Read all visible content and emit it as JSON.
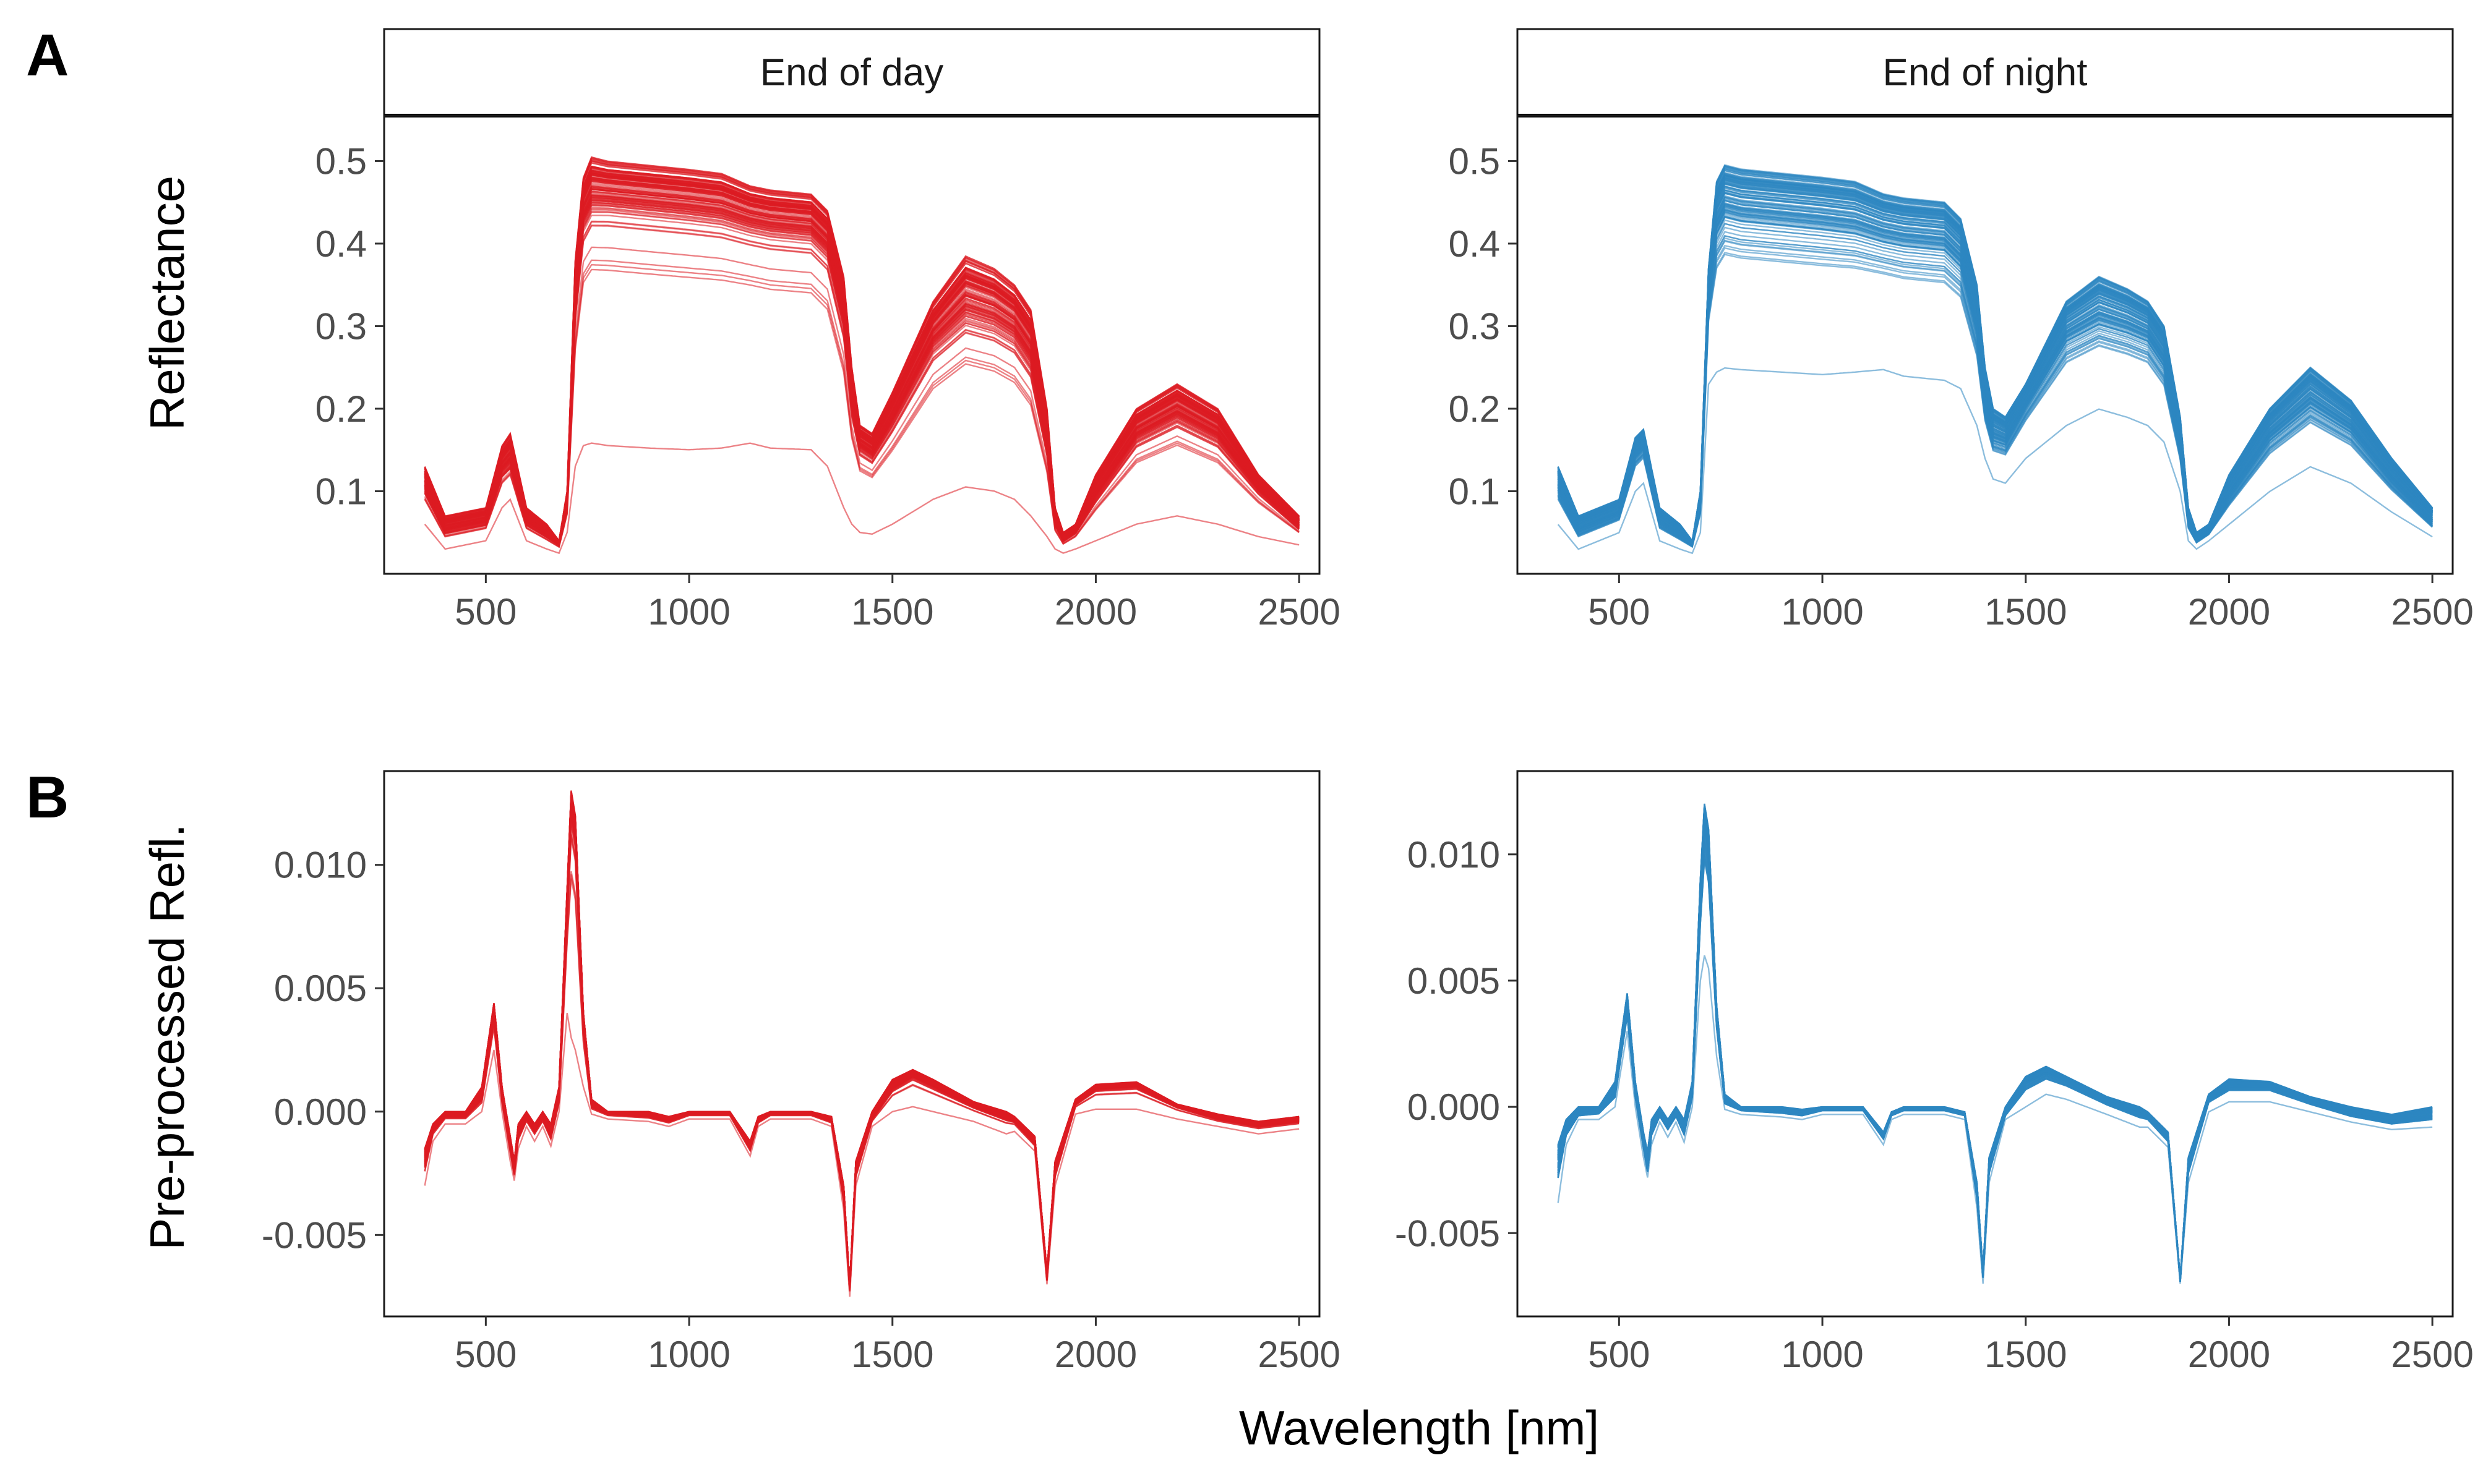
{
  "figure": {
    "panel_a_tag": "A",
    "panel_b_tag": "B",
    "x_title": "Wavelength [nm]",
    "y_title_a": "Reflectance",
    "y_title_b": "Pre-processed Refl."
  },
  "colors": {
    "end_of_day": "#dd1c22",
    "end_of_night": "#2e86c1"
  },
  "chart_data": [
    {
      "type": "line",
      "panel": "A",
      "facet": "End of day",
      "xlabel": "Wavelength [nm]",
      "ylabel": "Reflectance",
      "xlim": [
        250,
        2550
      ],
      "ylim": [
        0.0,
        0.555
      ],
      "x_ticks": [
        500,
        1000,
        1500,
        2000,
        2500
      ],
      "y_ticks": [
        0.1,
        0.2,
        0.3,
        0.4,
        0.5
      ],
      "x_tick_labels": [
        "500",
        "1000",
        "1500",
        "2000",
        "2500"
      ],
      "y_tick_labels": [
        "0.1",
        "0.2",
        "0.3",
        "0.4",
        "0.5"
      ],
      "line_count": 120,
      "nir_plateau_range": [
        0.15,
        0.5
      ],
      "x": [
        350,
        400,
        500,
        540,
        560,
        600,
        650,
        680,
        700,
        720,
        740,
        760,
        800,
        900,
        1000,
        1080,
        1150,
        1200,
        1300,
        1340,
        1380,
        1400,
        1420,
        1450,
        1500,
        1600,
        1680,
        1750,
        1800,
        1840,
        1880,
        1900,
        1920,
        1950,
        2000,
        2100,
        2200,
        2300,
        2400,
        2500
      ],
      "series": [
        {
          "stat": "max",
          "values": [
            0.13,
            0.07,
            0.08,
            0.155,
            0.17,
            0.08,
            0.06,
            0.04,
            0.1,
            0.38,
            0.48,
            0.505,
            0.5,
            0.495,
            0.49,
            0.485,
            0.47,
            0.465,
            0.46,
            0.44,
            0.36,
            0.25,
            0.18,
            0.17,
            0.22,
            0.33,
            0.385,
            0.37,
            0.35,
            0.32,
            0.2,
            0.08,
            0.05,
            0.06,
            0.12,
            0.2,
            0.23,
            0.2,
            0.12,
            0.07
          ]
        },
        {
          "stat": "median",
          "values": [
            0.1,
            0.05,
            0.06,
            0.12,
            0.13,
            0.06,
            0.045,
            0.035,
            0.08,
            0.32,
            0.42,
            0.44,
            0.44,
            0.435,
            0.43,
            0.425,
            0.415,
            0.41,
            0.405,
            0.385,
            0.3,
            0.2,
            0.15,
            0.14,
            0.18,
            0.27,
            0.305,
            0.295,
            0.28,
            0.25,
            0.15,
            0.06,
            0.04,
            0.05,
            0.09,
            0.16,
            0.185,
            0.16,
            0.1,
            0.055
          ]
        },
        {
          "stat": "min",
          "values": [
            0.06,
            0.03,
            0.04,
            0.08,
            0.09,
            0.04,
            0.03,
            0.025,
            0.05,
            0.13,
            0.155,
            0.158,
            0.155,
            0.152,
            0.15,
            0.152,
            0.158,
            0.152,
            0.15,
            0.13,
            0.08,
            0.06,
            0.05,
            0.048,
            0.06,
            0.09,
            0.105,
            0.1,
            0.09,
            0.07,
            0.045,
            0.03,
            0.025,
            0.03,
            0.04,
            0.06,
            0.07,
            0.06,
            0.045,
            0.035
          ]
        }
      ]
    },
    {
      "type": "line",
      "panel": "A",
      "facet": "End of night",
      "xlabel": "Wavelength [nm]",
      "ylabel": "Reflectance",
      "xlim": [
        250,
        2550
      ],
      "ylim": [
        0.0,
        0.555
      ],
      "x_ticks": [
        500,
        1000,
        1500,
        2000,
        2500
      ],
      "y_ticks": [
        0.1,
        0.2,
        0.3,
        0.4,
        0.5
      ],
      "x_tick_labels": [
        "500",
        "1000",
        "1500",
        "2000",
        "2500"
      ],
      "y_tick_labels": [
        "0.1",
        "0.2",
        "0.3",
        "0.4",
        "0.5"
      ],
      "line_count": 120,
      "nir_plateau_range": [
        0.25,
        0.49
      ],
      "x": [
        350,
        400,
        500,
        540,
        560,
        600,
        650,
        680,
        700,
        720,
        740,
        760,
        800,
        900,
        1000,
        1080,
        1150,
        1200,
        1300,
        1340,
        1380,
        1400,
        1420,
        1450,
        1500,
        1600,
        1680,
        1750,
        1800,
        1840,
        1880,
        1900,
        1920,
        1950,
        2000,
        2100,
        2200,
        2300,
        2400,
        2500
      ],
      "series": [
        {
          "stat": "max",
          "values": [
            0.13,
            0.07,
            0.09,
            0.165,
            0.175,
            0.08,
            0.06,
            0.04,
            0.1,
            0.37,
            0.475,
            0.495,
            0.49,
            0.485,
            0.48,
            0.475,
            0.46,
            0.455,
            0.45,
            0.43,
            0.35,
            0.25,
            0.2,
            0.19,
            0.23,
            0.33,
            0.36,
            0.345,
            0.33,
            0.3,
            0.19,
            0.08,
            0.05,
            0.06,
            0.12,
            0.2,
            0.25,
            0.21,
            0.14,
            0.08
          ]
        },
        {
          "stat": "median",
          "values": [
            0.1,
            0.05,
            0.07,
            0.14,
            0.15,
            0.06,
            0.045,
            0.035,
            0.08,
            0.33,
            0.41,
            0.43,
            0.425,
            0.42,
            0.415,
            0.41,
            0.4,
            0.395,
            0.39,
            0.37,
            0.29,
            0.2,
            0.16,
            0.155,
            0.2,
            0.28,
            0.3,
            0.29,
            0.28,
            0.25,
            0.15,
            0.06,
            0.04,
            0.05,
            0.09,
            0.16,
            0.2,
            0.17,
            0.11,
            0.06
          ]
        },
        {
          "stat": "min",
          "values": [
            0.06,
            0.03,
            0.05,
            0.1,
            0.11,
            0.04,
            0.03,
            0.025,
            0.05,
            0.23,
            0.245,
            0.25,
            0.248,
            0.245,
            0.242,
            0.245,
            0.248,
            0.24,
            0.235,
            0.225,
            0.18,
            0.14,
            0.115,
            0.11,
            0.14,
            0.18,
            0.2,
            0.19,
            0.18,
            0.16,
            0.1,
            0.04,
            0.03,
            0.04,
            0.06,
            0.1,
            0.13,
            0.11,
            0.075,
            0.045
          ]
        }
      ]
    },
    {
      "type": "line",
      "panel": "B",
      "facet": "End of day",
      "xlabel": "Wavelength [nm]",
      "ylabel": "Pre-processed Refl.",
      "xlim": [
        250,
        2550
      ],
      "ylim": [
        -0.0083,
        0.0138
      ],
      "x_ticks": [
        500,
        1000,
        1500,
        2000,
        2500
      ],
      "y_ticks": [
        -0.005,
        0.0,
        0.005,
        0.01
      ],
      "x_tick_labels": [
        "500",
        "1000",
        "1500",
        "2000",
        "2500"
      ],
      "y_tick_labels": [
        "-0.005",
        "0.000",
        "0.005",
        "0.010"
      ],
      "line_count": 120,
      "x": [
        350,
        370,
        400,
        450,
        490,
        520,
        540,
        560,
        570,
        580,
        600,
        620,
        640,
        660,
        680,
        700,
        710,
        720,
        740,
        760,
        800,
        900,
        950,
        1000,
        1100,
        1150,
        1170,
        1200,
        1300,
        1350,
        1380,
        1395,
        1410,
        1450,
        1500,
        1550,
        1600,
        1700,
        1780,
        1800,
        1850,
        1880,
        1900,
        1950,
        2000,
        2100,
        2200,
        2300,
        2400,
        2500
      ],
      "series": [
        {
          "stat": "max",
          "values": [
            -0.0015,
            -0.0005,
            0.0,
            0.0,
            0.001,
            0.0044,
            0.001,
            -0.001,
            -0.002,
            -0.0005,
            0.0,
            -0.0005,
            0.0,
            -0.0005,
            0.001,
            0.009,
            0.013,
            0.012,
            0.004,
            0.0005,
            0.0,
            0.0,
            -0.0002,
            0.0,
            0.0,
            -0.0012,
            -0.0002,
            0.0,
            0.0,
            -0.0002,
            -0.003,
            -0.007,
            -0.002,
            0.0,
            0.0013,
            0.0017,
            0.0013,
            0.0004,
            0.0,
            -0.0002,
            -0.001,
            -0.0065,
            -0.002,
            0.0005,
            0.0011,
            0.0012,
            0.0003,
            -0.0001,
            -0.0004,
            -0.0002
          ]
        },
        {
          "stat": "median",
          "values": [
            -0.0022,
            -0.0008,
            -0.0002,
            -0.0002,
            0.0005,
            0.0038,
            0.0005,
            -0.0015,
            -0.0025,
            -0.001,
            -0.0003,
            -0.0008,
            -0.0003,
            -0.001,
            0.0005,
            0.008,
            0.012,
            0.011,
            0.0035,
            0.0002,
            -0.0001,
            -0.0002,
            -0.0004,
            -0.0001,
            -0.0001,
            -0.0015,
            -0.0004,
            -0.0001,
            -0.0001,
            -0.0004,
            -0.0035,
            -0.0072,
            -0.0025,
            -0.0003,
            0.0009,
            0.0014,
            0.001,
            0.0002,
            -0.0003,
            -0.0004,
            -0.0013,
            -0.0068,
            -0.0025,
            0.0003,
            0.0009,
            0.001,
            0.0002,
            -0.0003,
            -0.0006,
            -0.0004
          ]
        },
        {
          "stat": "min",
          "values": [
            -0.003,
            -0.0012,
            -0.0005,
            -0.0005,
            0.0,
            0.0025,
            0.0,
            -0.002,
            -0.0028,
            -0.0015,
            -0.0006,
            -0.0012,
            -0.0006,
            -0.0014,
            0.0,
            0.004,
            0.003,
            0.0025,
            0.001,
            -0.0001,
            -0.0003,
            -0.0004,
            -0.0006,
            -0.0003,
            -0.0003,
            -0.0018,
            -0.0006,
            -0.0003,
            -0.0003,
            -0.0006,
            -0.004,
            -0.0075,
            -0.003,
            -0.0006,
            0.0,
            0.0002,
            0.0,
            -0.0004,
            -0.0009,
            -0.0008,
            -0.0016,
            -0.007,
            -0.003,
            -0.0001,
            0.0001,
            0.0001,
            -0.0003,
            -0.0006,
            -0.0009,
            -0.0007
          ]
        }
      ]
    },
    {
      "type": "line",
      "panel": "B",
      "facet": "End of night",
      "xlabel": "Wavelength [nm]",
      "ylabel": "Pre-processed Refl.",
      "xlim": [
        250,
        2550
      ],
      "ylim": [
        -0.0083,
        0.0133
      ],
      "x_ticks": [
        500,
        1000,
        1500,
        2000,
        2500
      ],
      "y_ticks": [
        -0.005,
        0.0,
        0.005,
        0.01
      ],
      "x_tick_labels": [
        "500",
        "1000",
        "1500",
        "2000",
        "2500"
      ],
      "y_tick_labels": [
        "-0.005",
        "0.000",
        "0.005",
        "0.010"
      ],
      "line_count": 120,
      "x": [
        350,
        370,
        400,
        450,
        490,
        520,
        540,
        560,
        570,
        580,
        600,
        620,
        640,
        660,
        680,
        700,
        710,
        720,
        740,
        760,
        800,
        900,
        950,
        1000,
        1100,
        1150,
        1170,
        1200,
        1300,
        1350,
        1380,
        1395,
        1410,
        1450,
        1500,
        1550,
        1600,
        1700,
        1780,
        1800,
        1850,
        1880,
        1900,
        1950,
        2000,
        2100,
        2200,
        2300,
        2400,
        2500
      ],
      "series": [
        {
          "stat": "max",
          "values": [
            -0.0015,
            -0.0005,
            0.0,
            0.0,
            0.001,
            0.0045,
            0.001,
            -0.001,
            -0.0018,
            -0.0005,
            0.0,
            -0.0005,
            0.0,
            -0.0005,
            0.001,
            0.009,
            0.012,
            0.011,
            0.004,
            0.0005,
            0.0,
            0.0,
            -0.0001,
            0.0,
            0.0,
            -0.001,
            -0.0002,
            0.0,
            0.0,
            -0.0002,
            -0.003,
            -0.0065,
            -0.002,
            0.0,
            0.0012,
            0.0016,
            0.0012,
            0.0004,
            0.0,
            -0.0002,
            -0.001,
            -0.0068,
            -0.002,
            0.0005,
            0.0011,
            0.001,
            0.0004,
            0.0,
            -0.0003,
            0.0
          ]
        },
        {
          "stat": "median",
          "values": [
            -0.0025,
            -0.001,
            -0.0003,
            -0.0002,
            0.0005,
            0.0038,
            0.0005,
            -0.0015,
            -0.0025,
            -0.001,
            -0.0003,
            -0.0008,
            -0.0003,
            -0.001,
            0.0005,
            0.008,
            0.011,
            0.01,
            0.0035,
            0.0002,
            -0.0001,
            -0.0002,
            -0.0003,
            -0.0001,
            -0.0001,
            -0.0012,
            -0.0003,
            -0.0001,
            -0.0001,
            -0.0003,
            -0.0035,
            -0.0067,
            -0.0025,
            -0.0003,
            0.0009,
            0.0013,
            0.001,
            0.0002,
            -0.0003,
            -0.0004,
            -0.0013,
            -0.0069,
            -0.0025,
            0.0003,
            0.0008,
            0.0008,
            0.0002,
            -0.0003,
            -0.0006,
            -0.0004
          ]
        },
        {
          "stat": "min",
          "values": [
            -0.0038,
            -0.0015,
            -0.0005,
            -0.0005,
            0.0,
            0.003,
            0.0,
            -0.002,
            -0.0028,
            -0.0015,
            -0.0006,
            -0.0012,
            -0.0006,
            -0.0014,
            0.0,
            0.005,
            0.006,
            0.0055,
            0.002,
            -0.0001,
            -0.0003,
            -0.0004,
            -0.0005,
            -0.0003,
            -0.0003,
            -0.0015,
            -0.0005,
            -0.0003,
            -0.0003,
            -0.0005,
            -0.004,
            -0.007,
            -0.003,
            -0.0005,
            0.0,
            0.0005,
            0.0003,
            -0.0003,
            -0.0008,
            -0.0008,
            -0.0016,
            -0.007,
            -0.003,
            -0.0002,
            0.0002,
            0.0002,
            -0.0002,
            -0.0006,
            -0.0009,
            -0.0008
          ]
        }
      ]
    }
  ]
}
